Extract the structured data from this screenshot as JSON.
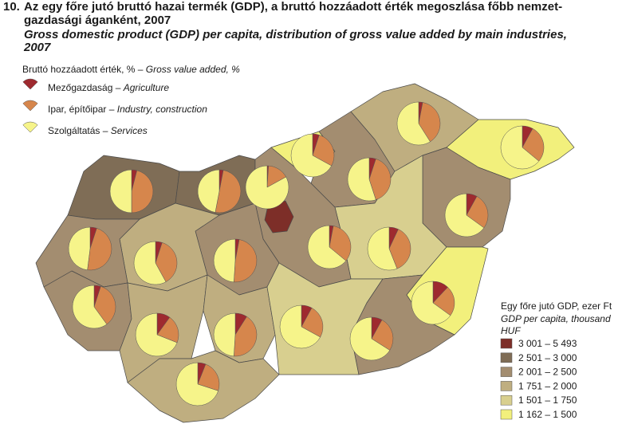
{
  "title": {
    "number": "10.",
    "lines_hu": [
      "Az egy főre jutó bruttó hazai termék (GDP), a bruttó hozzáadott érték megoszlása főbb nemzet-",
      "gazdasági áganként, 2007"
    ],
    "lines_en": [
      "Gross domestic product (GDP) per capita, distribution of gross value added by main industries,",
      "2007"
    ]
  },
  "pie_legend": {
    "header_hu": "Bruttó hozzáadott érték, % –",
    "header_en": "Gross value added, %",
    "series": [
      {
        "name_hu": "Mezőgazdaság –",
        "name_en": "Agriculture",
        "color": "#9e2a2f"
      },
      {
        "name_hu": "Ipar, építőipar –",
        "name_en": "Industry, construction",
        "color": "#d6864c"
      },
      {
        "name_hu": "Szolgáltatás –",
        "name_en": "Services",
        "color": "#f6f48a"
      }
    ]
  },
  "gdp_legend": {
    "title_hu": "Egy főre jutó GDP, ezer Ft",
    "title_en_lines": [
      "GDP per capita, thousand",
      "HUF"
    ],
    "classes": [
      {
        "label": "3 001 – 5 493",
        "color": "#7d2e28"
      },
      {
        "label": "2 501 – 3 000",
        "color": "#7f6d56"
      },
      {
        "label": "2 001 – 2 500",
        "color": "#a38d70"
      },
      {
        "label": "1 751 – 2 000",
        "color": "#bfae80"
      },
      {
        "label": "1 501 – 1 750",
        "color": "#d8cf8f"
      },
      {
        "label": "1 162 – 1 500",
        "color": "#f2f07c"
      }
    ]
  },
  "counties": [
    {
      "gdp_class": 1,
      "shares": [
        4,
        46,
        50
      ]
    },
    {
      "gdp_class": 1,
      "shares": [
        3,
        50,
        47
      ]
    },
    {
      "gdp_class": 0,
      "shares": [
        1,
        16,
        83
      ]
    },
    {
      "gdp_class": 5,
      "shares": [
        5,
        28,
        67
      ]
    },
    {
      "gdp_class": 2,
      "shares": [
        5,
        40,
        55
      ]
    },
    {
      "gdp_class": 3,
      "shares": [
        3,
        38,
        59
      ]
    },
    {
      "gdp_class": 5,
      "shares": [
        8,
        28,
        64
      ]
    },
    {
      "gdp_class": 2,
      "shares": [
        8,
        27,
        65
      ]
    },
    {
      "gdp_class": 4,
      "shares": [
        7,
        37,
        56
      ]
    },
    {
      "gdp_class": 2,
      "shares": [
        3,
        33,
        64
      ]
    },
    {
      "gdp_class": 2,
      "shares": [
        3,
        48,
        49
      ]
    },
    {
      "gdp_class": 3,
      "shares": [
        5,
        37,
        58
      ]
    },
    {
      "gdp_class": 2,
      "shares": [
        5,
        47,
        48
      ]
    },
    {
      "gdp_class": 2,
      "shares": [
        5,
        35,
        60
      ]
    },
    {
      "gdp_class": 3,
      "shares": [
        10,
        21,
        69
      ]
    },
    {
      "gdp_class": 3,
      "shares": [
        9,
        42,
        49
      ]
    },
    {
      "gdp_class": 4,
      "shares": [
        8,
        25,
        67
      ]
    },
    {
      "gdp_class": 2,
      "shares": [
        8,
        26,
        66
      ]
    },
    {
      "gdp_class": 5,
      "shares": [
        12,
        23,
        65
      ]
    },
    {
      "gdp_class": 3,
      "shares": [
        6,
        24,
        70
      ]
    }
  ]
}
